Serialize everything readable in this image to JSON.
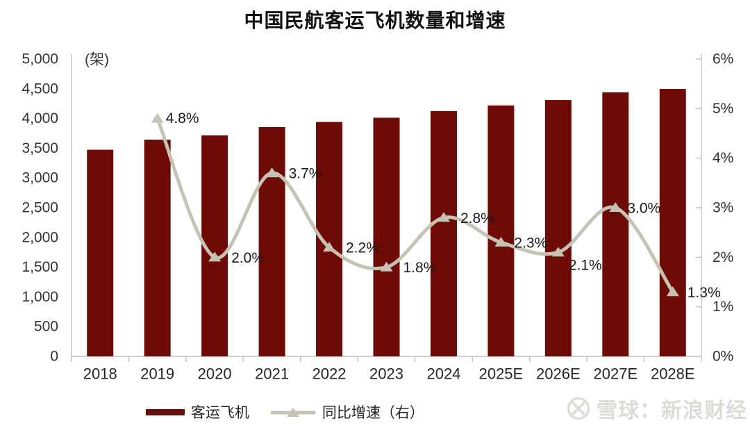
{
  "title": "中国民航客运飞机数量和增速",
  "watermark": {
    "text": "雪球：新浪财经",
    "logo_icon": "xueqiu-logo"
  },
  "colors": {
    "bar": "#6e0b06",
    "line": "#c6c3b4",
    "axis": "#bfbfbf",
    "tick_text": "#333333",
    "data_label_text": "#1a1a1a",
    "watermark": "#dcdbd6"
  },
  "chart_data": {
    "type": "combo",
    "categories": [
      "2018",
      "2019",
      "2020",
      "2021",
      "2022",
      "2023",
      "2024",
      "2025E",
      "2026E",
      "2027E",
      "2028E"
    ],
    "series": [
      {
        "name": "客运飞机",
        "type": "bar",
        "axis": "left",
        "color": "#6e0b06",
        "values": [
          3475,
          3645,
          3717,
          3856,
          3942,
          4013,
          4125,
          4220,
          4310,
          4440,
          4497
        ]
      },
      {
        "name": "同比增速（右）",
        "type": "line",
        "axis": "right",
        "color": "#c6c3b4",
        "marker": "triangle-up",
        "values": [
          null,
          4.8,
          2.0,
          3.7,
          2.2,
          1.8,
          2.8,
          2.3,
          2.1,
          3.0,
          1.3
        ],
        "point_labels": [
          null,
          "4.8%",
          "2.0%",
          "3.7%",
          "2.2%",
          "1.8%",
          "2.8%",
          "2.3%",
          "2.1%",
          "3.0%",
          "1.3%"
        ]
      }
    ],
    "left_axis": {
      "unit": "(架)",
      "min": 0,
      "max": 5000,
      "step": 500,
      "tick_labels": [
        "0",
        "500",
        "1,000",
        "1,500",
        "2,000",
        "2,500",
        "3,000",
        "3,500",
        "4,000",
        "4,500",
        "5,000"
      ]
    },
    "right_axis": {
      "min": 0,
      "max": 6,
      "step": 1,
      "tick_labels": [
        "0%",
        "1%",
        "2%",
        "3%",
        "4%",
        "5%",
        "6%"
      ]
    },
    "grid": false,
    "legend_position": "bottom"
  }
}
